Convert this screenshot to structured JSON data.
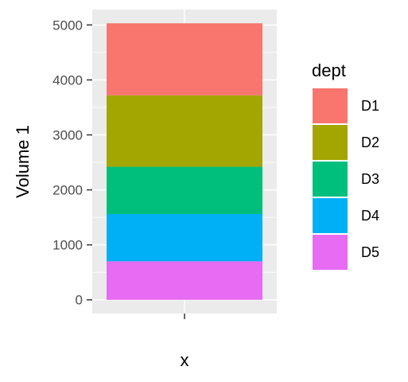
{
  "chart_data": {
    "type": "bar",
    "stacked": true,
    "categories": [
      ""
    ],
    "series": [
      {
        "name": "D1",
        "values": [
          1310
        ],
        "color": "#F8766D"
      },
      {
        "name": "D2",
        "values": [
          1300
        ],
        "color": "#A3A500"
      },
      {
        "name": "D3",
        "values": [
          860
        ],
        "color": "#00BF7D"
      },
      {
        "name": "D4",
        "values": [
          860
        ],
        "color": "#00B0F6"
      },
      {
        "name": "D5",
        "values": [
          700
        ],
        "color": "#E76BF3"
      }
    ],
    "xlabel": "x",
    "ylabel": "Volume 1",
    "yticks": [
      "0",
      "1000",
      "2000",
      "3000",
      "4000",
      "5000"
    ],
    "ylim": [
      -250,
      5280
    ],
    "legend": {
      "title": "dept",
      "placement": "right"
    },
    "grid": true,
    "panel_background": "#EBEBEB"
  }
}
